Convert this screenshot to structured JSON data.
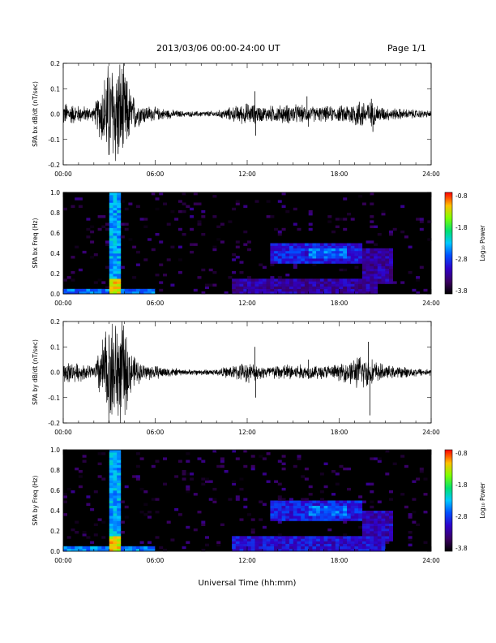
{
  "header": {
    "title": "2013/03/06  00:00-24:00 UT",
    "page": "Page 1/1"
  },
  "xaxis": {
    "label": "Universal Time (hh:mm)",
    "ticks": [
      "00:00",
      "06:00",
      "12:00",
      "18:00",
      "24:00"
    ]
  },
  "colorbar": {
    "label": "Log₁₀ Power",
    "ticks": [
      "-0.8",
      "-1.8",
      "-2.8",
      "-3.8"
    ]
  },
  "chart_data": [
    {
      "type": "line",
      "ylabel": "SPA bx dB/dt (nT/sec)",
      "yticks": [
        "0.2",
        "0.1",
        "0.0",
        "-0.1",
        "-0.2"
      ],
      "ylim": [
        -0.2,
        0.2
      ],
      "xlim_hours": [
        0,
        24
      ],
      "activity_envelope": [
        {
          "x": 0.0,
          "amp": 0.055
        },
        {
          "x": 1.0,
          "amp": 0.04
        },
        {
          "x": 2.0,
          "amp": 0.03
        },
        {
          "x": 3.0,
          "amp": 0.25
        },
        {
          "x": 3.8,
          "amp": 0.25
        },
        {
          "x": 4.5,
          "amp": 0.09
        },
        {
          "x": 5.0,
          "amp": 0.05
        },
        {
          "x": 6.0,
          "amp": 0.03
        },
        {
          "x": 8.0,
          "amp": 0.012
        },
        {
          "x": 10.0,
          "amp": 0.015
        },
        {
          "x": 12.0,
          "amp": 0.05
        },
        {
          "x": 13.0,
          "amp": 0.035
        },
        {
          "x": 15.0,
          "amp": 0.045
        },
        {
          "x": 16.0,
          "amp": 0.035
        },
        {
          "x": 18.0,
          "amp": 0.035
        },
        {
          "x": 19.5,
          "amp": 0.07
        },
        {
          "x": 21.0,
          "amp": 0.03
        },
        {
          "x": 24.0,
          "amp": 0.015
        }
      ],
      "spikes": [
        {
          "x": 12.5,
          "y": 0.09
        },
        {
          "x": 12.55,
          "y": -0.085
        },
        {
          "x": 15.9,
          "y": 0.07
        },
        {
          "x": 16.0,
          "y": -0.05
        },
        {
          "x": 20.2,
          "y": -0.07
        },
        {
          "x": 20.1,
          "y": 0.06
        }
      ]
    },
    {
      "type": "heatmap",
      "ylabel": "SPA bx Freq (Hz)",
      "yticks": [
        "1.0",
        "0.8",
        "0.6",
        "0.4",
        "0.2",
        "0.0"
      ],
      "ylim": [
        0,
        1.0
      ],
      "xlim_hours": [
        0,
        24
      ],
      "zlim": [
        -3.8,
        -0.8
      ],
      "regions": [
        {
          "x": [
            3.0,
            3.8
          ],
          "f": [
            0.0,
            1.0
          ],
          "z": -2.4
        },
        {
          "x": [
            3.0,
            3.8
          ],
          "f": [
            0.0,
            0.15
          ],
          "z": -1.3
        },
        {
          "x": [
            0.0,
            6.0
          ],
          "f": [
            0.0,
            0.06
          ],
          "z": -2.6
        },
        {
          "x": [
            11.0,
            20.5
          ],
          "f": [
            0.0,
            0.15
          ],
          "z": -3.2
        },
        {
          "x": [
            13.5,
            19.5
          ],
          "f": [
            0.3,
            0.5
          ],
          "z": -2.9
        },
        {
          "x": [
            16.0,
            18.5
          ],
          "f": [
            0.35,
            0.45
          ],
          "z": -2.6
        },
        {
          "x": [
            19.5,
            21.5
          ],
          "f": [
            0.1,
            0.45
          ],
          "z": -3.2
        }
      ]
    },
    {
      "type": "line",
      "ylabel": "SPA by dB/dt (nT/sec)",
      "yticks": [
        "0.2",
        "0.1",
        "0.0",
        "-0.1",
        "-0.2"
      ],
      "ylim": [
        -0.2,
        0.2
      ],
      "xlim_hours": [
        0,
        24
      ],
      "activity_envelope": [
        {
          "x": 0.0,
          "amp": 0.05
        },
        {
          "x": 1.0,
          "amp": 0.04
        },
        {
          "x": 2.0,
          "amp": 0.03
        },
        {
          "x": 3.0,
          "amp": 0.25
        },
        {
          "x": 3.8,
          "amp": 0.25
        },
        {
          "x": 4.5,
          "amp": 0.08
        },
        {
          "x": 5.0,
          "amp": 0.045
        },
        {
          "x": 6.0,
          "amp": 0.03
        },
        {
          "x": 8.0,
          "amp": 0.012
        },
        {
          "x": 10.0,
          "amp": 0.015
        },
        {
          "x": 12.0,
          "amp": 0.045
        },
        {
          "x": 13.0,
          "amp": 0.03
        },
        {
          "x": 15.0,
          "amp": 0.04
        },
        {
          "x": 16.0,
          "amp": 0.03
        },
        {
          "x": 18.0,
          "amp": 0.035
        },
        {
          "x": 19.5,
          "amp": 0.08
        },
        {
          "x": 21.0,
          "amp": 0.03
        },
        {
          "x": 24.0,
          "amp": 0.015
        }
      ],
      "spikes": [
        {
          "x": 12.5,
          "y": 0.1
        },
        {
          "x": 12.55,
          "y": -0.1
        },
        {
          "x": 19.9,
          "y": 0.12
        },
        {
          "x": 20.0,
          "y": -0.17
        },
        {
          "x": 16.0,
          "y": 0.05
        }
      ]
    },
    {
      "type": "heatmap",
      "ylabel": "SPA by Freq (Hz)",
      "yticks": [
        "1.0",
        "0.8",
        "0.6",
        "0.4",
        "0.2",
        "0.0"
      ],
      "ylim": [
        0,
        1.0
      ],
      "xlim_hours": [
        0,
        24
      ],
      "zlim": [
        -3.8,
        -0.8
      ],
      "regions": [
        {
          "x": [
            3.0,
            3.8
          ],
          "f": [
            0.0,
            1.0
          ],
          "z": -2.4
        },
        {
          "x": [
            3.0,
            3.8
          ],
          "f": [
            0.0,
            0.15
          ],
          "z": -1.3
        },
        {
          "x": [
            0.0,
            6.0
          ],
          "f": [
            0.0,
            0.06
          ],
          "z": -2.5
        },
        {
          "x": [
            11.0,
            21.0
          ],
          "f": [
            0.0,
            0.15
          ],
          "z": -3.0
        },
        {
          "x": [
            13.5,
            19.5
          ],
          "f": [
            0.3,
            0.5
          ],
          "z": -2.9
        },
        {
          "x": [
            16.0,
            18.5
          ],
          "f": [
            0.35,
            0.45
          ],
          "z": -2.6
        },
        {
          "x": [
            19.5,
            21.5
          ],
          "f": [
            0.1,
            0.4
          ],
          "z": -3.1
        }
      ]
    }
  ]
}
